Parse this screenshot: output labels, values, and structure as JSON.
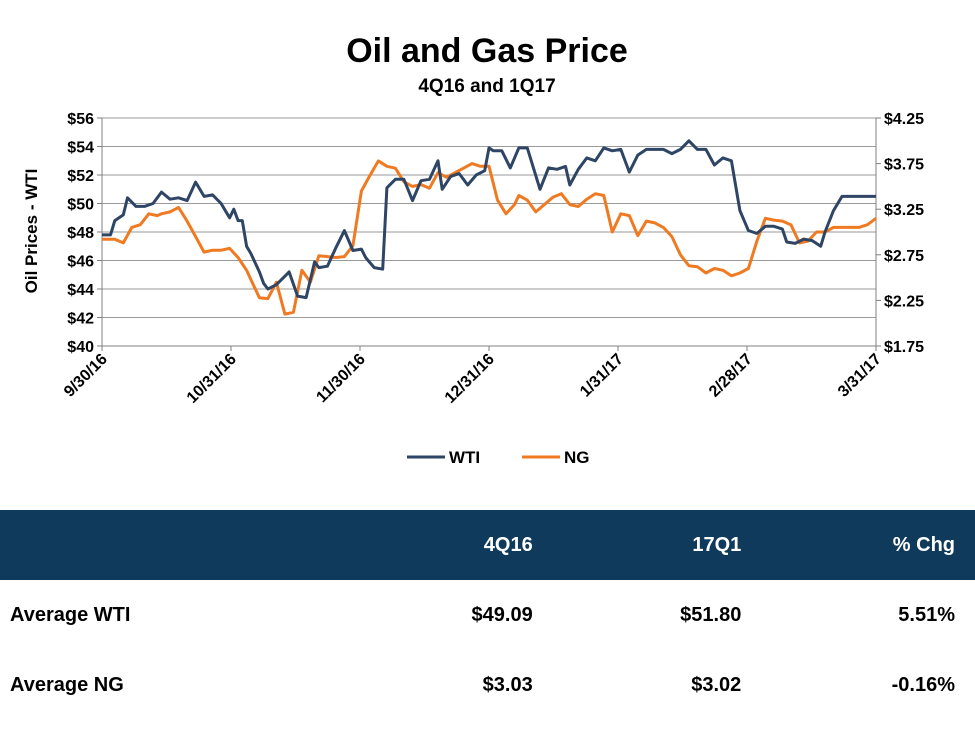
{
  "chart_data": {
    "type": "line",
    "title": "Oil and Gas Price",
    "subtitle": "4Q16 and 1Q17",
    "ylabel_left": "Oil Prices - WTI",
    "ylabel_right": "",
    "ylim_left": [
      40,
      56
    ],
    "ylim_right": [
      1.75,
      4.25
    ],
    "yticks_left": [
      "$40",
      "$42",
      "$44",
      "$46",
      "$48",
      "$50",
      "$52",
      "$54",
      "$56"
    ],
    "yticks_right": [
      "$1.75",
      "$2.25",
      "$2.75",
      "$3.25",
      "$3.75",
      "$4.25"
    ],
    "xticks": [
      "9/30/16",
      "10/31/16",
      "11/30/16",
      "12/31/16",
      "1/31/17",
      "2/28/17",
      "3/31/17"
    ],
    "x_range_days": [
      0,
      182
    ],
    "grid": true,
    "legend": "bottom",
    "series": [
      {
        "name": "WTI",
        "axis": "left",
        "color": "#2e4565",
        "x": [
          0,
          2,
          3,
          5,
          6,
          8,
          10,
          12,
          14,
          16,
          18,
          20,
          22,
          24,
          26,
          28,
          30,
          31,
          32,
          33,
          34,
          35,
          37,
          38,
          39,
          41,
          43,
          44,
          46,
          48,
          50,
          51,
          53,
          55,
          57,
          59,
          61,
          62,
          64,
          66,
          67,
          69,
          71,
          73,
          75,
          77,
          79,
          80,
          82,
          84,
          86,
          88,
          90,
          91,
          92,
          94,
          96,
          98,
          100,
          103,
          105,
          107,
          109,
          110,
          112,
          114,
          116,
          118,
          120,
          122,
          124,
          126,
          128,
          130,
          132,
          134,
          136,
          138,
          140,
          142,
          144,
          146,
          148,
          150,
          152,
          153,
          154,
          156,
          158,
          160,
          161,
          163,
          165,
          167,
          169,
          170,
          172,
          174,
          176,
          178,
          180,
          182
        ],
        "values": [
          47.8,
          47.8,
          48.8,
          49.2,
          50.4,
          49.8,
          49.8,
          50.0,
          50.8,
          50.3,
          50.4,
          50.2,
          51.5,
          50.5,
          50.6,
          50.0,
          49.0,
          49.6,
          48.8,
          48.8,
          47.0,
          46.5,
          45.2,
          44.4,
          44.0,
          44.3,
          44.9,
          45.2,
          43.5,
          43.4,
          45.9,
          45.5,
          45.6,
          46.9,
          48.1,
          46.7,
          46.8,
          46.2,
          45.5,
          45.4,
          51.1,
          51.7,
          51.7,
          50.2,
          51.6,
          51.7,
          53.0,
          51.0,
          51.9,
          52.1,
          51.3,
          52.0,
          52.3,
          53.9,
          53.7,
          53.7,
          52.5,
          53.9,
          53.9,
          51.0,
          52.5,
          52.4,
          52.6,
          51.3,
          52.4,
          53.2,
          53.0,
          53.9,
          53.7,
          53.8,
          52.2,
          53.4,
          53.8,
          53.8,
          53.8,
          53.5,
          53.8,
          54.4,
          53.8,
          53.8,
          52.7,
          53.2,
          53.0,
          49.5,
          48.1,
          48.0,
          47.9,
          48.4,
          48.4,
          48.2,
          47.3,
          47.2,
          47.5,
          47.4,
          47.0,
          48.0,
          49.5,
          50.5,
          50.5,
          50.5,
          50.5,
          50.5
        ]
      },
      {
        "name": "NG",
        "axis": "right",
        "color": "#f07a22",
        "x": [
          0,
          3,
          5,
          7,
          9,
          11,
          13,
          14,
          16,
          18,
          20,
          22,
          24,
          26,
          28,
          30,
          32,
          34,
          35,
          37,
          39,
          41,
          43,
          45,
          47,
          49,
          51,
          53,
          55,
          57,
          59,
          61,
          63,
          65,
          67,
          69,
          71,
          73,
          75,
          77,
          79,
          81,
          83,
          85,
          87,
          89,
          91,
          93,
          95,
          97,
          98,
          100,
          102,
          104,
          106,
          108,
          110,
          112,
          114,
          116,
          118,
          120,
          122,
          124,
          126,
          128,
          130,
          132,
          134,
          136,
          138,
          140,
          142,
          144,
          146,
          148,
          150,
          152,
          154,
          156,
          158,
          160,
          162,
          164,
          166,
          168,
          170,
          172,
          174,
          176,
          178,
          180,
          182
        ],
        "values": [
          2.92,
          2.92,
          2.88,
          3.05,
          3.08,
          3.2,
          3.18,
          3.2,
          3.22,
          3.27,
          3.12,
          2.95,
          2.78,
          2.8,
          2.8,
          2.82,
          2.72,
          2.58,
          2.48,
          2.28,
          2.27,
          2.45,
          2.1,
          2.12,
          2.58,
          2.45,
          2.74,
          2.73,
          2.72,
          2.73,
          2.85,
          3.45,
          3.62,
          3.78,
          3.72,
          3.7,
          3.55,
          3.5,
          3.52,
          3.48,
          3.65,
          3.6,
          3.65,
          3.7,
          3.75,
          3.72,
          3.72,
          3.35,
          3.2,
          3.3,
          3.4,
          3.35,
          3.22,
          3.3,
          3.38,
          3.42,
          3.3,
          3.28,
          3.36,
          3.42,
          3.4,
          3.0,
          3.2,
          3.18,
          2.96,
          3.12,
          3.1,
          3.05,
          2.95,
          2.75,
          2.63,
          2.62,
          2.55,
          2.6,
          2.58,
          2.52,
          2.55,
          2.6,
          2.9,
          3.15,
          3.13,
          3.12,
          3.08,
          2.88,
          2.9,
          3.0,
          3.0,
          3.05,
          3.05,
          3.05,
          3.05,
          3.08,
          3.15
        ]
      }
    ]
  },
  "table": {
    "headers": [
      "",
      "4Q16",
      "17Q1",
      "% Chg"
    ],
    "rows": [
      [
        "Average WTI",
        "$49.09",
        "$51.80",
        "5.51%"
      ],
      [
        "Average NG",
        "$3.03",
        "$3.02",
        "-0.16%"
      ]
    ]
  }
}
